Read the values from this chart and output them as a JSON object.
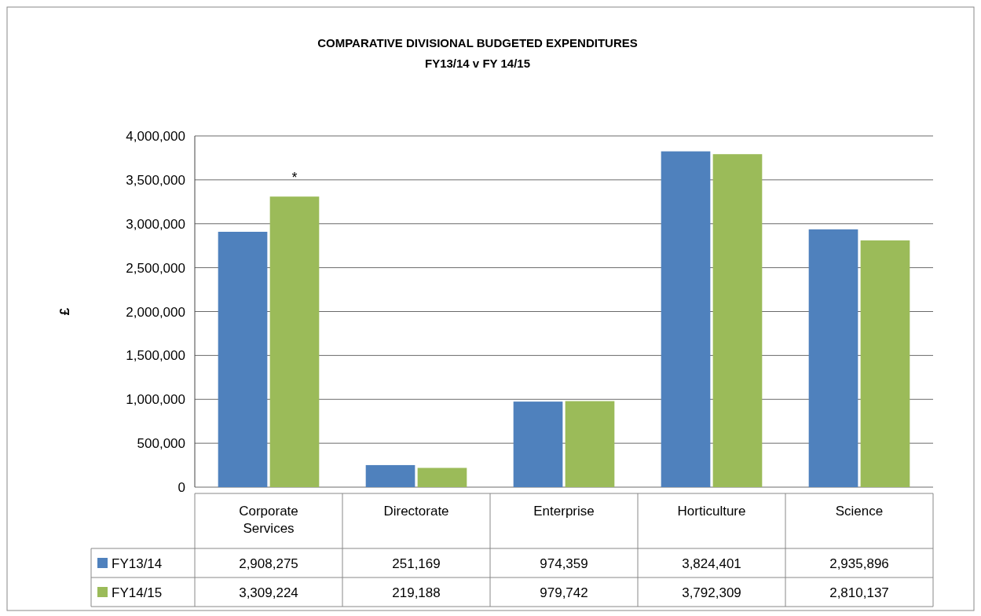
{
  "chart_data": {
    "type": "bar",
    "title": "COMPARATIVE  DIVISIONAL BUDGETED  EXPENDITURES",
    "subtitle": "FY13/14 v FY 14/15",
    "ylabel": "£",
    "categories": [
      "Corporate Services",
      "Directorate",
      "Enterprise",
      "Horticulture",
      "Science"
    ],
    "series": [
      {
        "name": "FY13/14",
        "color": "#4f81bd",
        "values": [
          2908275,
          251169,
          974359,
          3824401,
          2935896
        ],
        "value_labels": [
          "2,908,275",
          "251,169",
          "974,359",
          "3,824,401",
          "2,935,896"
        ]
      },
      {
        "name": "FY14/15",
        "color": "#9bbb59",
        "values": [
          3309224,
          219188,
          979742,
          3792309,
          2810137
        ],
        "value_labels": [
          "3,309,224",
          "219,188",
          "979,742",
          "3,792,309",
          "2,810,137"
        ]
      }
    ],
    "ylim": [
      0,
      4000000
    ],
    "yticks": [
      0,
      {
        "value": 500000,
        "label": "500,000"
      },
      {
        "value": 1000000,
        "label": "1,000,000"
      },
      {
        "value": 1500000,
        "label": "1,500,000"
      },
      {
        "value": 2000000,
        "label": "2,000,000"
      },
      {
        "value": 2500000,
        "label": "2,500,000"
      },
      {
        "value": 3000000,
        "label": "3,000,000"
      },
      {
        "value": 3500000,
        "label": "3,500,000"
      },
      {
        "value": 4000000,
        "label": "4,000,000"
      }
    ],
    "grid": "y",
    "legend": "bottom",
    "annotations": [
      {
        "text": "*",
        "x": "Corporate Services",
        "y": 3309224
      }
    ]
  }
}
